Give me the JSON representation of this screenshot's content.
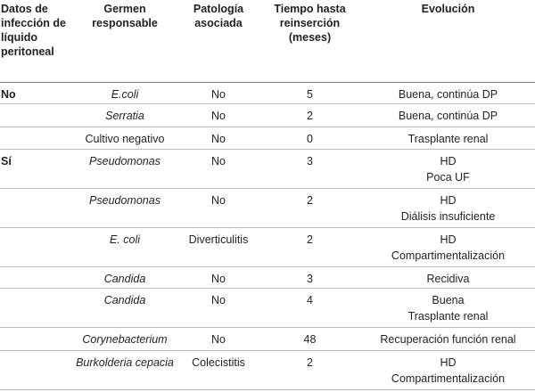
{
  "table": {
    "headers": [
      "Datos de infección de líquido peritoneal",
      "Germen responsable",
      "Patología asociada",
      "Tiempo hasta reinserción (meses)",
      "Evolución"
    ],
    "rows": [
      [
        "No",
        "E.coli",
        "No",
        "5",
        [
          "Buena, continúa DP"
        ]
      ],
      [
        null,
        "Serratia",
        "No",
        "2",
        [
          "Buena, continúa DP"
        ]
      ],
      [
        null,
        "Cultivo negativo",
        "No",
        "0",
        [
          "Trasplante renal"
        ]
      ],
      [
        "Sí",
        "Pseudomonas",
        "No",
        "3",
        [
          "HD",
          "Poca UF"
        ]
      ],
      [
        null,
        "Pseudomonas",
        "No",
        "2",
        [
          "HD",
          "Diálisis insuficiente"
        ]
      ],
      [
        null,
        "E. coli",
        "Diverticulitis",
        "2",
        [
          "HD",
          "Compartimentalización"
        ]
      ],
      [
        null,
        "Candida",
        "No",
        "3",
        [
          "Recidiva"
        ]
      ],
      [
        null,
        "Candida",
        "No",
        "4",
        [
          "Buena",
          "Trasplante renal"
        ]
      ],
      [
        null,
        "Corynebacterium",
        "No",
        "48",
        [
          "Recuperación función renal"
        ]
      ],
      [
        null,
        "Burkolderia cepacia",
        "Colecistitis",
        "2",
        [
          "HD",
          "Compartimentalización"
        ]
      ]
    ]
  }
}
